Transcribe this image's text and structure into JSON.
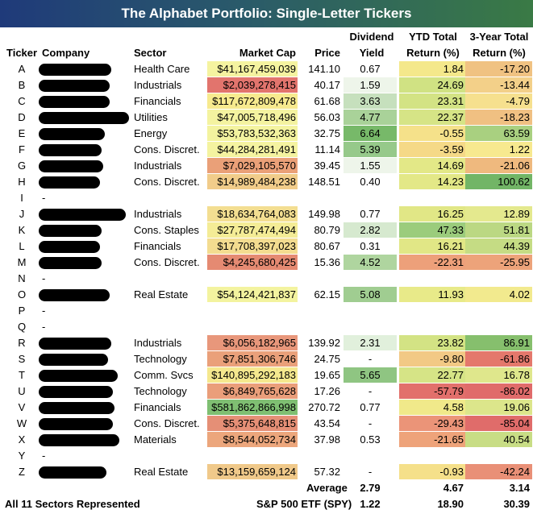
{
  "title": "The Alphabet Portfolio: Single-Letter Tickers",
  "headers": {
    "ticker": "Ticker",
    "company": "Company",
    "sector": "Sector",
    "market_cap": "Market Cap",
    "price": "Price",
    "dividend_1": "Dividend",
    "dividend_2": "Yield",
    "ytd_1": "YTD Total",
    "ytd_2": "Return (%)",
    "y3_1": "3-Year Total",
    "y3_2": "Return (%)"
  },
  "rows": [
    {
      "ticker": "A",
      "sector": "Health Care",
      "market_cap": "$41,167,459,039",
      "price": "141.10",
      "div": "0.67",
      "ytd": "1.84",
      "y3": "-17.20",
      "mc_color": "#f5f3a0",
      "div_color": "#ffffff",
      "ytd_color": "#f4e88b",
      "y3_color": "#f0c282"
    },
    {
      "ticker": "B",
      "sector": "Industrials",
      "market_cap": "$2,039,278,415",
      "price": "40.17",
      "div": "1.59",
      "ytd": "24.69",
      "y3": "-13.44",
      "mc_color": "#e2746d",
      "div_color": "#eef5ea",
      "ytd_color": "#d0e283",
      "y3_color": "#f3d089"
    },
    {
      "ticker": "C",
      "sector": "Financials",
      "market_cap": "$117,672,809,478",
      "price": "61.68",
      "div": "3.63",
      "ytd": "23.31",
      "y3": "-4.79",
      "mc_color": "#f7ea8e",
      "div_color": "#c6e0bd",
      "ytd_color": "#d3e384",
      "y3_color": "#f6e08e"
    },
    {
      "ticker": "D",
      "sector": "Utilities",
      "market_cap": "$47,005,718,496",
      "price": "56.03",
      "div": "4.77",
      "ytd": "22.37",
      "y3": "-18.23",
      "mc_color": "#f4f3a0",
      "div_color": "#a9d299",
      "ytd_color": "#d6e486",
      "y3_color": "#f0c082"
    },
    {
      "ticker": "E",
      "sector": "Energy",
      "market_cap": "$53,783,532,363",
      "price": "32.75",
      "div": "6.64",
      "ytd": "-0.55",
      "y3": "63.59",
      "mc_color": "#f3f39f",
      "div_color": "#77b969",
      "ytd_color": "#f5e18a",
      "y3_color": "#a9d080"
    },
    {
      "ticker": "F",
      "sector": "Cons. Discret.",
      "market_cap": "$44,284,281,491",
      "price": "11.14",
      "div": "5.39",
      "ytd": "-3.59",
      "y3": "1.22",
      "mc_color": "#f4f3a0",
      "div_color": "#96c98a",
      "ytd_color": "#f5d987",
      "y3_color": "#f7e98f"
    },
    {
      "ticker": "G",
      "sector": "Industrials",
      "market_cap": "$7,029,105,570",
      "price": "39.45",
      "div": "1.55",
      "ytd": "14.69",
      "y3": "-21.06",
      "mc_color": "#eaa078",
      "div_color": "#eef5ea",
      "ytd_color": "#e3e887",
      "y3_color": "#efb97e"
    },
    {
      "ticker": "H",
      "sector": "Cons. Discret.",
      "market_cap": "$14,989,484,238",
      "price": "148.51",
      "div": "0.40",
      "ytd": "14.23",
      "y3": "100.62",
      "mc_color": "#f1cc8a",
      "div_color": "#ffffff",
      "ytd_color": "#e3e887",
      "y3_color": "#72b566"
    },
    {
      "ticker": "I",
      "empty": true
    },
    {
      "ticker": "J",
      "sector": "Industrials",
      "market_cap": "$18,634,764,083",
      "price": "149.98",
      "div": "0.77",
      "ytd": "16.25",
      "y3": "12.89",
      "mc_color": "#f3de91",
      "div_color": "#ffffff",
      "ytd_color": "#e1e786",
      "y3_color": "#e4e98e"
    },
    {
      "ticker": "K",
      "sector": "Cons. Staples",
      "market_cap": "$27,787,474,494",
      "price": "80.79",
      "div": "2.82",
      "ytd": "47.33",
      "y3": "51.81",
      "mc_color": "#f4ec96",
      "div_color": "#d6e9cf",
      "ytd_color": "#9bcc7c",
      "y3_color": "#bbd883"
    },
    {
      "ticker": "L",
      "sector": "Financials",
      "market_cap": "$17,708,397,023",
      "price": "80.67",
      "div": "0.31",
      "ytd": "16.21",
      "y3": "44.39",
      "mc_color": "#f3dc90",
      "div_color": "#ffffff",
      "ytd_color": "#e1e786",
      "y3_color": "#c5dc84"
    },
    {
      "ticker": "M",
      "sector": "Cons. Discret.",
      "market_cap": "$4,245,680,425",
      "price": "15.36",
      "div": "4.52",
      "ytd": "-22.31",
      "y3": "-25.95",
      "mc_color": "#e58a72",
      "div_color": "#afd59f",
      "ytd_color": "#eda07a",
      "y3_color": "#eda37a"
    },
    {
      "ticker": "N",
      "empty": true
    },
    {
      "ticker": "O",
      "sector": "Real Estate",
      "market_cap": "$54,124,421,837",
      "price": "62.15",
      "div": "5.08",
      "ytd": "11.93",
      "y3": "4.02",
      "mc_color": "#f3f39f",
      "div_color": "#a0cd91",
      "ytd_color": "#e8ea89",
      "y3_color": "#f2ea8e"
    },
    {
      "ticker": "P",
      "empty": true
    },
    {
      "ticker": "Q",
      "empty": true
    },
    {
      "ticker": "R",
      "sector": "Industrials",
      "market_cap": "$6,056,182,965",
      "price": "139.92",
      "div": "2.31",
      "ytd": "23.82",
      "y3": "86.91",
      "mc_color": "#e8977b",
      "div_color": "#e1f0dc",
      "ytd_color": "#d3e384",
      "y3_color": "#86bf6d"
    },
    {
      "ticker": "S",
      "sector": "Technology",
      "market_cap": "$7,851,306,746",
      "price": "24.75",
      "div": "-",
      "ytd": "-9.80",
      "y3": "-61.86",
      "mc_color": "#eaa07a",
      "div_color": "#ffffff",
      "ytd_color": "#f2c985",
      "y3_color": "#e4786c"
    },
    {
      "ticker": "T",
      "sector": "Comm. Svcs",
      "market_cap": "$140,895,292,183",
      "price": "19.65",
      "div": "5.65",
      "ytd": "22.77",
      "y3": "16.78",
      "mc_color": "#f5e88e",
      "div_color": "#8fc582",
      "ytd_color": "#d6e486",
      "y3_color": "#dfe78c"
    },
    {
      "ticker": "U",
      "sector": "Technology",
      "market_cap": "$6,849,765,628",
      "price": "17.26",
      "div": "-",
      "ytd": "-57.79",
      "y3": "-86.02",
      "mc_color": "#ea9e7a",
      "div_color": "#ffffff",
      "ytd_color": "#e2706b",
      "y3_color": "#e06b6a"
    },
    {
      "ticker": "V",
      "sector": "Financials",
      "market_cap": "$581,862,866,998",
      "price": "270.72",
      "div": "0.77",
      "ytd": "4.58",
      "y3": "19.06",
      "mc_color": "#7fbf72",
      "div_color": "#ffffff",
      "ytd_color": "#f0e98a",
      "y3_color": "#dce68b"
    },
    {
      "ticker": "W",
      "sector": "Cons. Discret.",
      "market_cap": "$5,375,648,815",
      "price": "43.54",
      "div": "-",
      "ytd": "-29.43",
      "y3": "-85.04",
      "mc_color": "#e58f76",
      "div_color": "#ffffff",
      "ytd_color": "#eb9478",
      "y3_color": "#e06c6a"
    },
    {
      "ticker": "X",
      "sector": "Materials",
      "market_cap": "$8,544,052,734",
      "price": "37.98",
      "div": "0.53",
      "ytd": "-21.65",
      "y3": "40.54",
      "mc_color": "#eca67c",
      "div_color": "#ffffff",
      "ytd_color": "#eea37a",
      "y3_color": "#c8dd85"
    },
    {
      "ticker": "Y",
      "empty": true
    },
    {
      "ticker": "Z",
      "sector": "Real Estate",
      "market_cap": "$13,159,659,124",
      "price": "57.32",
      "div": "-",
      "ytd": "-0.93",
      "y3": "-42.24",
      "mc_color": "#f0c98a",
      "div_color": "#ffffff",
      "ytd_color": "#f5e08a",
      "y3_color": "#e99077"
    }
  ],
  "footer": {
    "average_label": "Average",
    "average_div": "2.79",
    "average_ytd": "4.67",
    "average_y3": "3.14",
    "sectors_note": "All 11 Sectors Represented",
    "spy_label": "S&P 500 ETF (SPY)",
    "spy_div": "1.22",
    "spy_ytd": "18.90",
    "spy_y3": "30.39"
  }
}
